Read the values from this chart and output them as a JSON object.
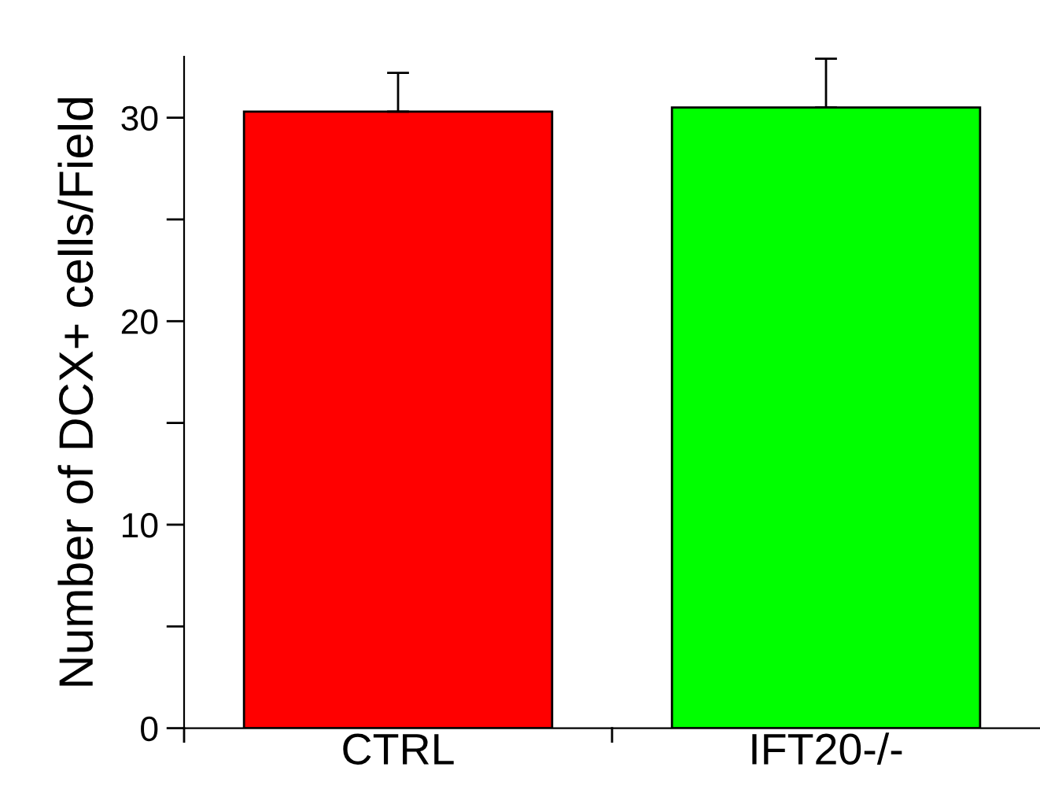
{
  "chart_data": {
    "type": "bar",
    "ylabel": "Number of DCX+ cells/Field",
    "categories": [
      "CTRL",
      "IFT20-/-"
    ],
    "values": [
      30.3,
      30.5
    ],
    "errors": [
      [
        30.3,
        32.2
      ],
      [
        30.5,
        32.9
      ]
    ],
    "colors": [
      "#ff0000",
      "#00ff00"
    ],
    "ylim": [
      0,
      33
    ],
    "yticks": [
      0,
      {
        "value": 5,
        "label": null
      },
      10,
      {
        "value": 15,
        "label": null
      },
      20,
      {
        "value": 25,
        "label": null
      },
      30
    ],
    "grid": false,
    "legend": false
  }
}
